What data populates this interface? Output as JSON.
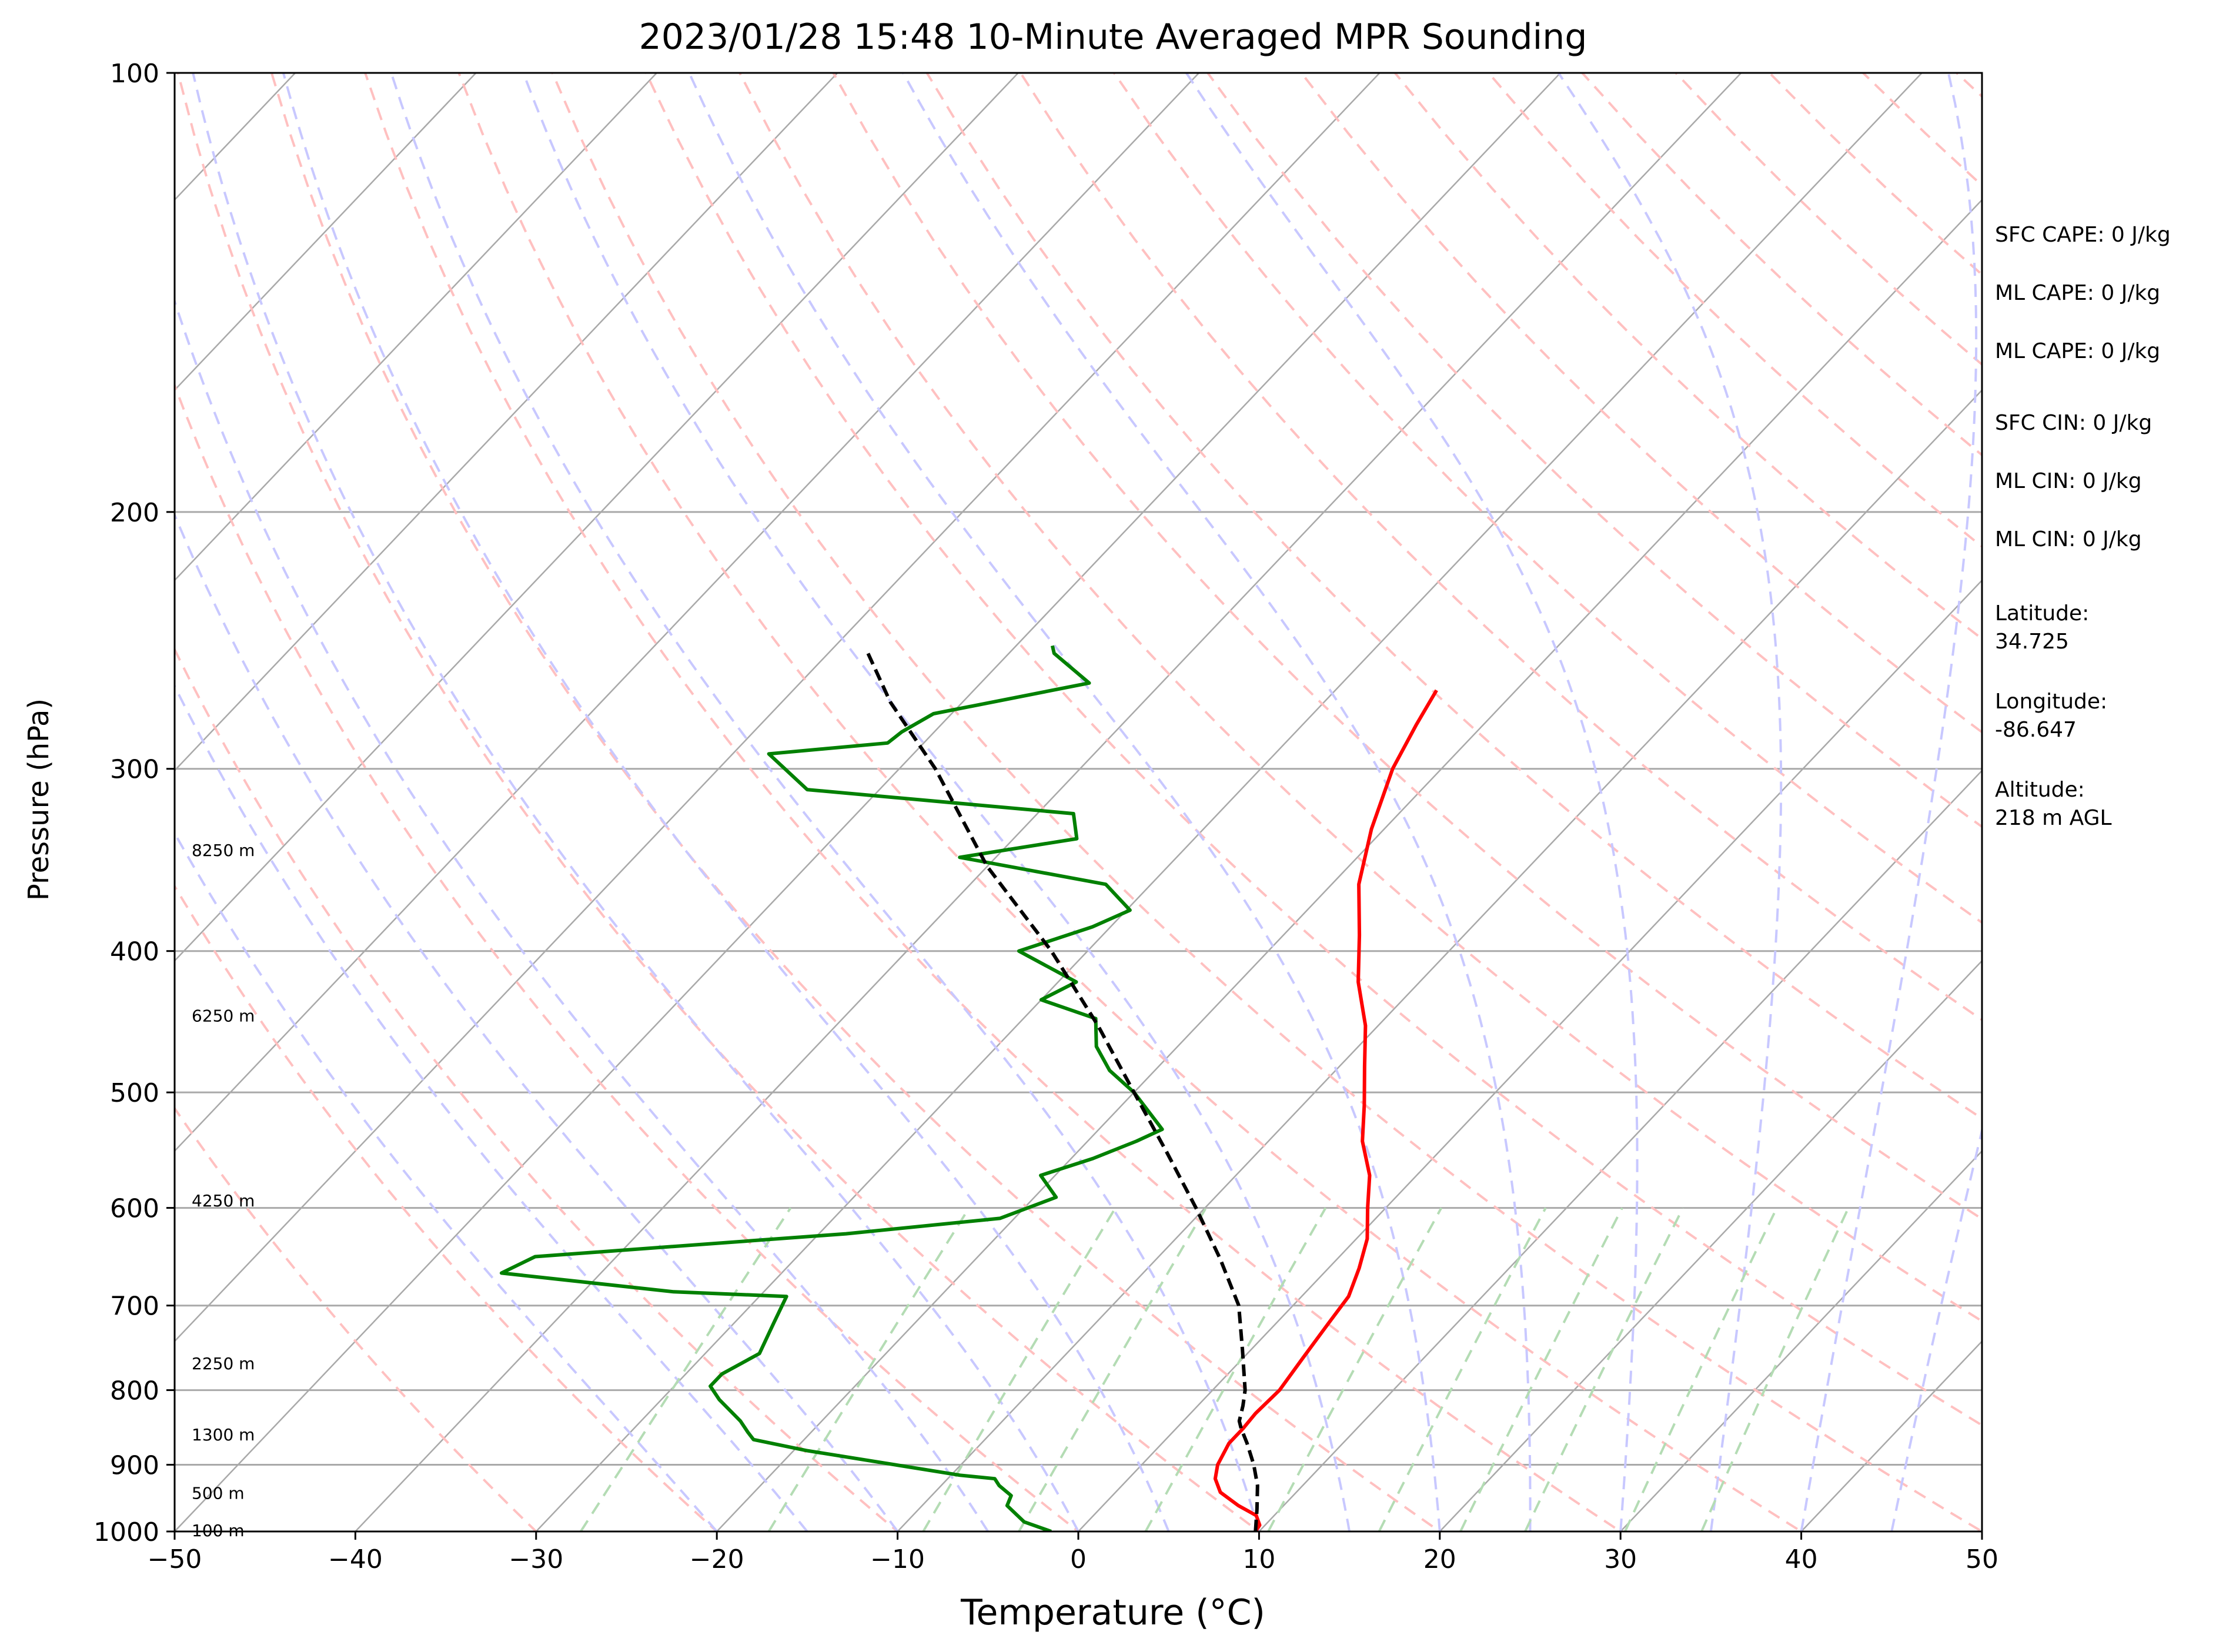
{
  "chart_data": {
    "type": "line",
    "diagram": "skew-t log-p",
    "title": "2023/01/28 15:48 10-Minute Averaged MPR Sounding",
    "xlabel": "Temperature (°C)",
    "ylabel": "Pressure (hPa)",
    "xlim": [
      -50,
      50
    ],
    "ylim": [
      1000,
      100
    ],
    "yscale": "log",
    "x_ticks": [
      -50,
      -40,
      -30,
      -20,
      -10,
      0,
      10,
      20,
      30,
      40,
      50
    ],
    "x_tick_labels": [
      "−50",
      "−40",
      "−30",
      "−20",
      "−10",
      "0",
      "10",
      "20",
      "30",
      "40",
      "50"
    ],
    "y_ticks": [
      1000,
      900,
      800,
      700,
      600,
      500,
      400,
      300,
      200,
      100
    ],
    "y_tick_labels": [
      "1000",
      "900",
      "800",
      "700",
      "600",
      "500",
      "400",
      "300",
      "200",
      "100"
    ],
    "grid": true,
    "series": [
      {
        "role": "temperature",
        "color": "#ff0000",
        "points": [
          [
            1000,
            9.8
          ],
          [
            990,
            9.7
          ],
          [
            975,
            9.0
          ],
          [
            960,
            7.5
          ],
          [
            940,
            5.8
          ],
          [
            920,
            4.8
          ],
          [
            900,
            4.2
          ],
          [
            870,
            3.7
          ],
          [
            850,
            3.7
          ],
          [
            830,
            3.6
          ],
          [
            800,
            3.7
          ],
          [
            760,
            3.3
          ],
          [
            720,
            2.9
          ],
          [
            690,
            2.6
          ],
          [
            660,
            1.7
          ],
          [
            630,
            0.6
          ],
          [
            600,
            -1.0
          ],
          [
            570,
            -2.6
          ],
          [
            540,
            -4.8
          ],
          [
            510,
            -6.6
          ],
          [
            480,
            -8.6
          ],
          [
            450,
            -10.7
          ],
          [
            420,
            -13.4
          ],
          [
            390,
            -15.8
          ],
          [
            360,
            -18.5
          ],
          [
            330,
            -20.7
          ],
          [
            300,
            -22.7
          ],
          [
            280,
            -23.7
          ],
          [
            265,
            -24.4
          ]
        ]
      },
      {
        "role": "dewpoint",
        "color": "#008000",
        "points": [
          [
            1000,
            -1.5
          ],
          [
            985,
            -3.5
          ],
          [
            960,
            -5.3
          ],
          [
            945,
            -5.6
          ],
          [
            930,
            -6.8
          ],
          [
            920,
            -7.4
          ],
          [
            915,
            -9.5
          ],
          [
            880,
            -19.3
          ],
          [
            865,
            -22.8
          ],
          [
            855,
            -23.5
          ],
          [
            840,
            -24.5
          ],
          [
            812,
            -26.8
          ],
          [
            795,
            -28.0
          ],
          [
            780,
            -28.0
          ],
          [
            755,
            -27.0
          ],
          [
            720,
            -27.8
          ],
          [
            690,
            -28.5
          ],
          [
            685,
            -35.0
          ],
          [
            665,
            -45.5
          ],
          [
            648,
            -44.5
          ],
          [
            625,
            -28.5
          ],
          [
            610,
            -20.8
          ],
          [
            590,
            -18.8
          ],
          [
            570,
            -20.8
          ],
          [
            555,
            -18.8
          ],
          [
            540,
            -17.3
          ],
          [
            530,
            -16.5
          ],
          [
            500,
            -20.0
          ],
          [
            483,
            -22.5
          ],
          [
            465,
            -24.5
          ],
          [
            445,
            -26.0
          ],
          [
            432,
            -30.0
          ],
          [
            420,
            -29.0
          ],
          [
            400,
            -33.8
          ],
          [
            385,
            -31.0
          ],
          [
            375,
            -29.8
          ],
          [
            360,
            -32.5
          ],
          [
            345,
            -42.0
          ],
          [
            335,
            -36.5
          ],
          [
            322,
            -38.0
          ],
          [
            310,
            -54.0
          ],
          [
            293,
            -58.0
          ],
          [
            288,
            -52.0
          ],
          [
            283,
            -51.8
          ],
          [
            275,
            -51.0
          ],
          [
            262,
            -44.0
          ],
          [
            250,
            -47.5
          ],
          [
            247,
            -48.0
          ]
        ]
      },
      {
        "role": "parcel",
        "color": "#000000",
        "dash": "dashed",
        "points": [
          [
            1000,
            9.8
          ],
          [
            965,
            8.7
          ],
          [
            930,
            7.5
          ],
          [
            900,
            6.2
          ],
          [
            870,
            4.7
          ],
          [
            850,
            3.6
          ],
          [
            840,
            3.1
          ],
          [
            820,
            2.5
          ],
          [
            800,
            1.8
          ],
          [
            750,
            -0.5
          ],
          [
            700,
            -3.0
          ],
          [
            650,
            -6.5
          ],
          [
            600,
            -10.5
          ],
          [
            550,
            -15.0
          ],
          [
            500,
            -20.0
          ],
          [
            450,
            -25.5
          ],
          [
            400,
            -32.0
          ],
          [
            350,
            -40.0
          ],
          [
            300,
            -48.0
          ],
          [
            270,
            -54.0
          ],
          [
            250,
            -57.8
          ]
        ]
      }
    ],
    "height_labels": [
      {
        "pressure": 998,
        "text": "100 m"
      },
      {
        "pressure": 941,
        "text": "500 m"
      },
      {
        "pressure": 858,
        "text": "1300 m"
      },
      {
        "pressure": 767,
        "text": "2250 m"
      },
      {
        "pressure": 593,
        "text": "4250 m"
      },
      {
        "pressure": 443,
        "text": "6250 m"
      },
      {
        "pressure": 341,
        "text": "8250 m"
      }
    ],
    "background_lines": {
      "isotherms_color": "#a9a9a9",
      "dry_adiabats_color": "#ffc0c0",
      "moist_adiabats_color": "#c8c8ff",
      "mixing_ratio_color": "#b4dcb4"
    }
  },
  "info_panel": [
    {
      "id": "sfc-cape",
      "text": "SFC CAPE: 0 J/kg"
    },
    {
      "id": "ml-cape-1",
      "text": "ML CAPE: 0 J/kg"
    },
    {
      "id": "ml-cape-2",
      "text": "ML CAPE: 0 J/kg"
    },
    {
      "id": "sfc-cin",
      "text": "SFC CIN: 0 J/kg"
    },
    {
      "id": "ml-cin-1",
      "text": "ML CIN: 0 J/kg"
    },
    {
      "id": "ml-cin-2",
      "text": "ML CIN: 0 J/kg"
    },
    {
      "id": "latitude",
      "text": "Latitude:\n34.725"
    },
    {
      "id": "longitude",
      "text": "Longitude:\n-86.647"
    },
    {
      "id": "altitude",
      "text": "Altitude:\n218 m AGL"
    }
  ]
}
